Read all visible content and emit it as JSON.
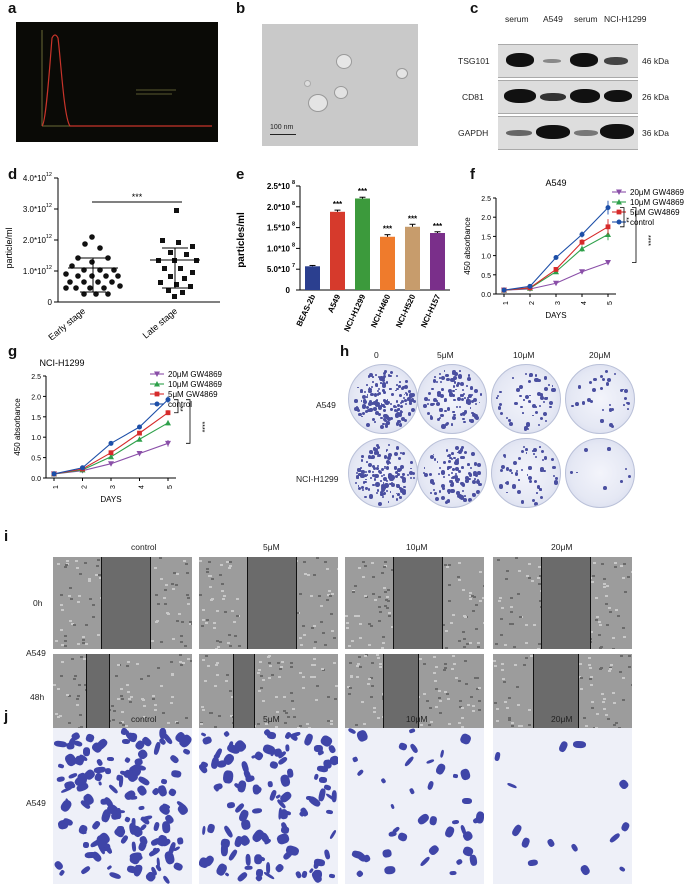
{
  "panel_labels": {
    "a": "a",
    "b": "b",
    "c": "c",
    "d": "d",
    "e": "e",
    "f": "f",
    "g": "g",
    "h": "h",
    "i": "i",
    "j": "j"
  },
  "panel_b": {
    "scale_bar": "100 nm"
  },
  "panel_c": {
    "lanes": [
      "serum",
      "A549",
      "serum",
      "NCI-H1299"
    ],
    "proteins": [
      {
        "name": "TSG101",
        "kda": "46 kDa"
      },
      {
        "name": "CD81",
        "kda": "26 kDa"
      },
      {
        "name": "GAPDH",
        "kda": "36 kDa"
      }
    ]
  },
  "panel_d": {
    "ylabel": "particle/ml",
    "yticks": [
      "0",
      "1.0*10",
      "2.0*10",
      "3.0*10",
      "4.0*10"
    ],
    "ytick_exp": "12",
    "groups": [
      "Early stage",
      "Late stage"
    ],
    "sig": "***"
  },
  "panel_h": {
    "concentrations": [
      "0",
      "5μM",
      "10μM",
      "20μM"
    ],
    "rows": [
      "A549",
      "NCI-H1299"
    ]
  },
  "panel_i": {
    "concentrations": [
      "control",
      "5μM",
      "10μM",
      "20μM"
    ],
    "times": [
      "0h",
      "48h"
    ],
    "cell_line": "A549"
  },
  "panel_j": {
    "concentrations": [
      "control",
      "5μM",
      "10μM",
      "20μM"
    ],
    "cell_line": "A549"
  },
  "chart_data": [
    {
      "id": "e",
      "type": "bar",
      "ylabel": "particles/ml",
      "yticks": [
        "0",
        "5.0*10",
        "1.0*10",
        "1.5*10",
        "2.0*10",
        "2.5*10"
      ],
      "ytick_exps": [
        "",
        "7",
        "8",
        "8",
        "8",
        "8"
      ],
      "ylim": [
        0,
        250000000
      ],
      "categories": [
        "BEAS-2b",
        "A549",
        "NCI-H1299",
        "NCI-H460",
        "NCI-H520",
        "NCI-H157"
      ],
      "values": [
        57000000,
        188000000,
        220000000,
        128000000,
        152000000,
        137000000
      ],
      "errors": [
        2000000,
        4000000,
        3000000,
        5000000,
        6000000,
        3000000
      ],
      "colors": [
        "#2b3f8f",
        "#d63a2c",
        "#3c9a3c",
        "#ef7b2c",
        "#c79c6c",
        "#7a2f8a"
      ],
      "sig": [
        "",
        "***",
        "***",
        "***",
        "***",
        "***"
      ]
    },
    {
      "id": "f",
      "type": "line",
      "title": "A549",
      "xlabel": "DAYS",
      "ylabel": "450 absorbance",
      "x": [
        1,
        2,
        3,
        4,
        5
      ],
      "ylim": [
        0,
        2.5
      ],
      "yticks": [
        "0.0",
        "0.5",
        "1.0",
        "1.5",
        "2.0",
        "2.5"
      ],
      "series": [
        {
          "name": "20μM GW4869",
          "color": "#8a4fa8",
          "marker": "tri-down",
          "values": [
            0.1,
            0.13,
            0.28,
            0.58,
            0.82
          ],
          "err": [
            0.02,
            0.02,
            0.03,
            0.04,
            0.05
          ]
        },
        {
          "name": "10μM GW4869",
          "color": "#2ea04a",
          "marker": "tri-up",
          "values": [
            0.1,
            0.15,
            0.58,
            1.18,
            1.55
          ],
          "err": [
            0.02,
            0.02,
            0.04,
            0.08,
            0.15
          ]
        },
        {
          "name": "5μM GW4869",
          "color": "#d62a2a",
          "marker": "square",
          "values": [
            0.1,
            0.16,
            0.64,
            1.35,
            1.75
          ],
          "err": [
            0.02,
            0.02,
            0.05,
            0.08,
            0.2
          ]
        },
        {
          "name": "control",
          "color": "#1d4fa8",
          "marker": "circle",
          "values": [
            0.1,
            0.2,
            0.95,
            1.55,
            2.25
          ],
          "err": [
            0.02,
            0.02,
            0.04,
            0.08,
            0.18
          ]
        }
      ],
      "sig": [
        "**",
        "****"
      ]
    },
    {
      "id": "g",
      "type": "line",
      "title": "NCI-H1299",
      "xlabel": "DAYS",
      "ylabel": "450 absorbance",
      "x": [
        1,
        2,
        3,
        4,
        5
      ],
      "ylim": [
        0,
        2.5
      ],
      "yticks": [
        "0.0",
        "0.5",
        "1.0",
        "1.5",
        "2.0",
        "2.5"
      ],
      "series": [
        {
          "name": "20μM GW4869",
          "color": "#8a4fa8",
          "marker": "tri-down",
          "values": [
            0.1,
            0.18,
            0.35,
            0.6,
            0.85
          ],
          "err": [
            0.02,
            0.02,
            0.04,
            0.05,
            0.08
          ]
        },
        {
          "name": "10μM GW4869",
          "color": "#2ea04a",
          "marker": "tri-up",
          "values": [
            0.1,
            0.2,
            0.52,
            0.95,
            1.35
          ],
          "err": [
            0.02,
            0.02,
            0.04,
            0.05,
            0.06
          ]
        },
        {
          "name": "5μM GW4869",
          "color": "#d62a2a",
          "marker": "square",
          "values": [
            0.1,
            0.22,
            0.62,
            1.1,
            1.6
          ],
          "err": [
            0.02,
            0.02,
            0.04,
            0.05,
            0.06
          ]
        },
        {
          "name": "control",
          "color": "#1d4fa8",
          "marker": "circle",
          "values": [
            0.1,
            0.25,
            0.85,
            1.25,
            1.92
          ],
          "err": [
            0.02,
            0.02,
            0.04,
            0.05,
            0.08
          ]
        }
      ],
      "sig": [
        "**",
        "****"
      ]
    }
  ]
}
